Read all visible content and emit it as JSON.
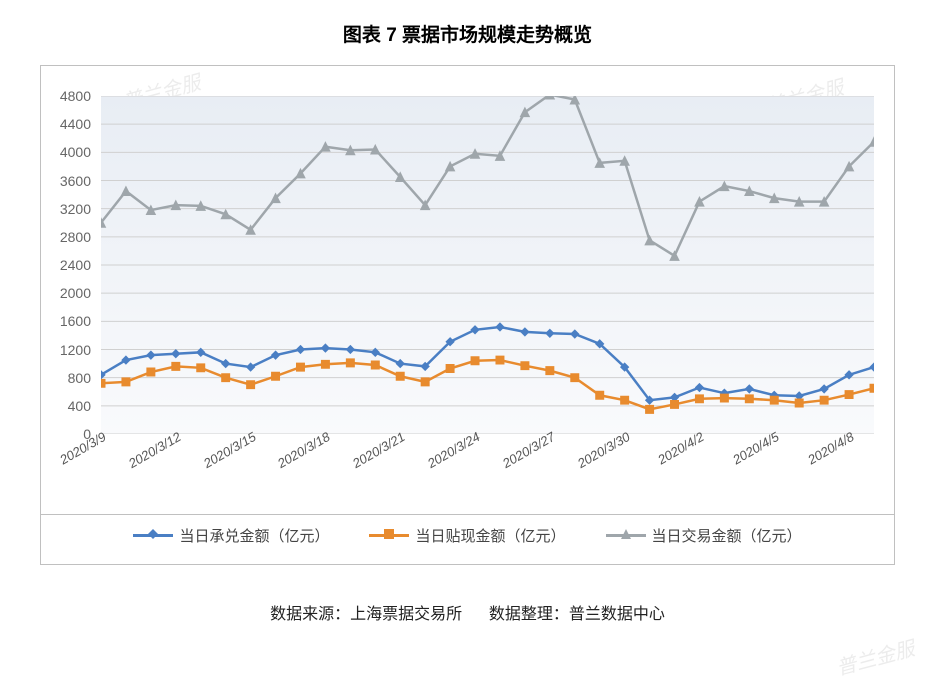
{
  "title": "图表 7  票据市场规模走势概览",
  "title_fontsize": 19,
  "footer_source": "数据来源：上海票据交易所",
  "footer_org": "数据整理：普兰数据中心",
  "watermark_text": "普兰金服",
  "chart": {
    "type": "line",
    "background_gradient_top": "#e8edf4",
    "background_gradient_bottom": "#f9fafc",
    "grid_color": "#d0d0d0",
    "border_color": "#c0c0c0",
    "ylim": [
      0,
      4800
    ],
    "ytick_step": 400,
    "yticks": [
      0,
      400,
      800,
      1200,
      1600,
      2000,
      2400,
      2800,
      3200,
      3600,
      4000,
      4400,
      4800
    ],
    "categories": [
      "2020/3/9",
      "2020/3/10",
      "2020/3/11",
      "2020/3/12",
      "2020/3/13",
      "2020/3/14",
      "2020/3/15",
      "2020/3/16",
      "2020/3/17",
      "2020/3/18",
      "2020/3/19",
      "2020/3/20",
      "2020/3/21",
      "2020/3/22",
      "2020/3/23",
      "2020/3/24",
      "2020/3/25",
      "2020/3/26",
      "2020/3/27",
      "2020/3/28",
      "2020/3/29",
      "2020/3/30",
      "2020/3/31",
      "2020/4/1",
      "2020/4/2",
      "2020/4/3",
      "2020/4/4",
      "2020/4/5",
      "2020/4/6",
      "2020/4/7",
      "2020/4/8",
      "2020/4/9"
    ],
    "x_tick_labels": [
      "2020/3/9",
      "2020/3/12",
      "2020/3/15",
      "2020/3/18",
      "2020/3/21",
      "2020/3/24",
      "2020/3/27",
      "2020/3/30",
      "2020/4/2",
      "2020/4/5",
      "2020/4/8"
    ],
    "x_tick_indices": [
      0,
      3,
      6,
      9,
      12,
      15,
      18,
      21,
      24,
      27,
      30
    ],
    "x_label_fontsize": 13,
    "y_label_fontsize": 14,
    "series": [
      {
        "name": "当日承兑金额（亿元）",
        "color": "#4a7fc4",
        "marker": "diamond",
        "marker_size": 8,
        "line_width": 2.5,
        "values": [
          840,
          1050,
          1120,
          1140,
          1160,
          1000,
          950,
          1120,
          1200,
          1220,
          1200,
          1160,
          1000,
          960,
          1310,
          1480,
          1520,
          1450,
          1430,
          1420,
          1280,
          950,
          480,
          520,
          660,
          580,
          640,
          550,
          540,
          640,
          840,
          950
        ]
      },
      {
        "name": "当日贴现金额（亿元）",
        "color": "#e88b2e",
        "marker": "square",
        "marker_size": 8,
        "line_width": 2.5,
        "values": [
          720,
          740,
          880,
          960,
          940,
          800,
          700,
          820,
          950,
          990,
          1010,
          980,
          820,
          740,
          930,
          1040,
          1050,
          970,
          900,
          800,
          550,
          480,
          350,
          420,
          500,
          510,
          500,
          480,
          440,
          480,
          560,
          650
        ]
      },
      {
        "name": "当日交易金额（亿元）",
        "color": "#9fa6ab",
        "marker": "triangle",
        "marker_size": 9,
        "line_width": 2.5,
        "values": [
          3000,
          3450,
          3180,
          3250,
          3240,
          3120,
          2900,
          3350,
          3700,
          4080,
          4030,
          4040,
          3650,
          3250,
          3800,
          3980,
          3950,
          4570,
          4820,
          4750,
          3850,
          3880,
          2750,
          2530,
          3300,
          3520,
          3450,
          3350,
          3300,
          3300,
          3800,
          4150
        ]
      }
    ],
    "legend_fontsize": 15
  }
}
